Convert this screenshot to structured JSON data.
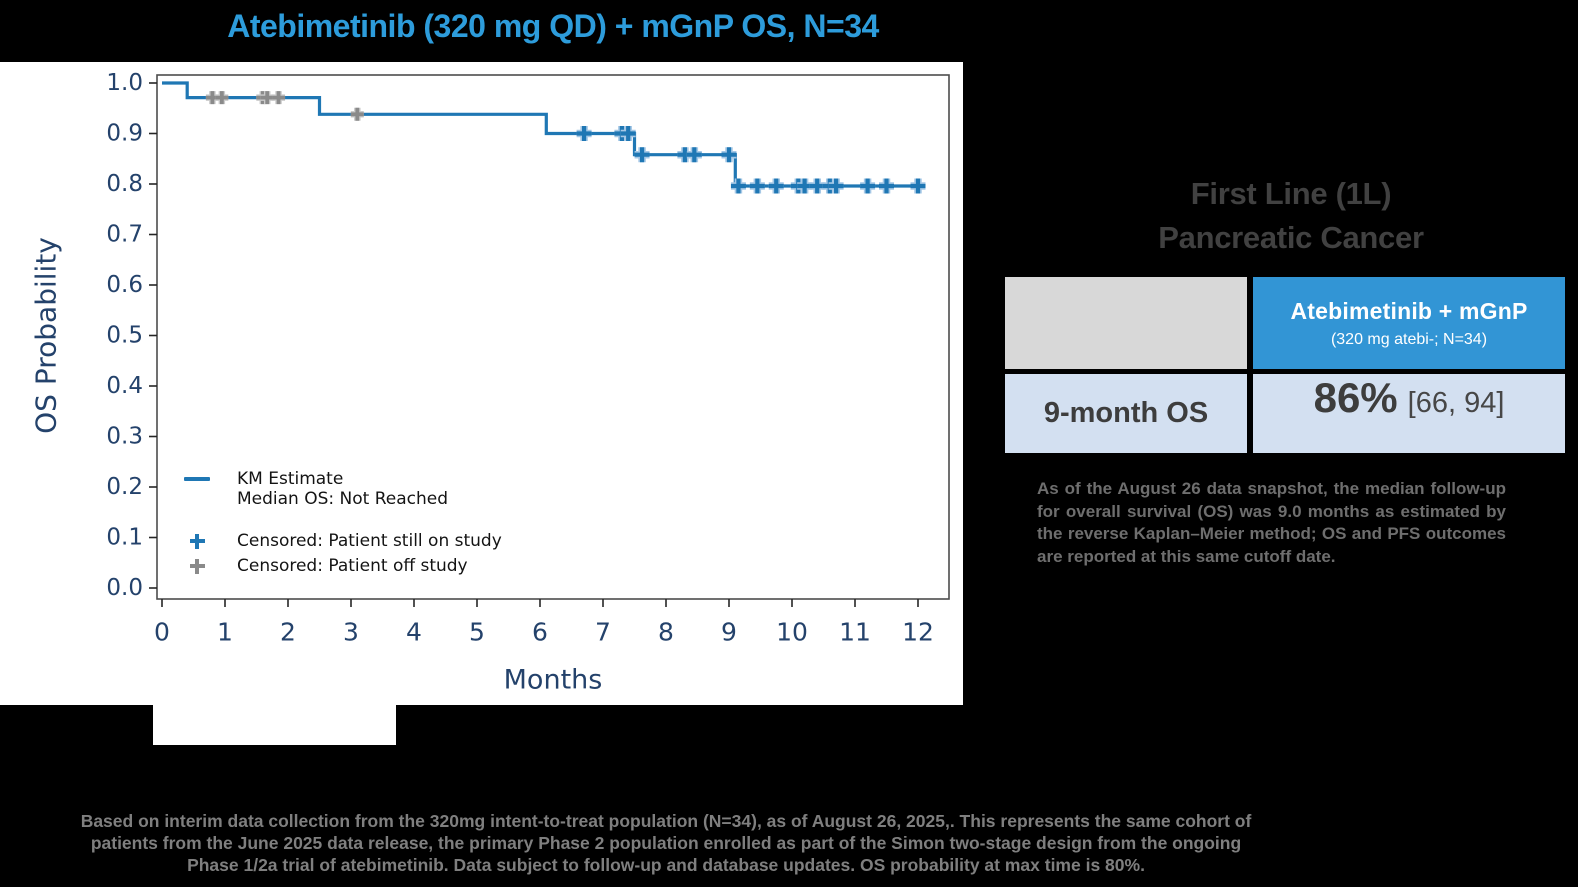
{
  "page": {
    "background": "#000000",
    "panel_background": "#ffffff"
  },
  "colors": {
    "title_blue": "#2D9CDB",
    "km_line_blue": "#1F77B4",
    "censor_on_study_blue": "#1F77B4",
    "censor_off_study_gray": "#8A8A8A",
    "axis_navy": "#24426B",
    "table_header_blue": "#3295D5",
    "table_row_light_blue": "#D3E0F1",
    "table_corner_gray": "#D8D8D8",
    "heading_gray": "#414141",
    "note_gray": "#6E6E6E",
    "footer_gray": "#7F7F7F"
  },
  "chart_data": {
    "type": "line",
    "subtype": "kaplan-meier-step",
    "title": "Atebimetinib (320 mg QD) + mGnP OS, N=34",
    "xlabel": "Months",
    "ylabel": "OS Probability",
    "xlim": [
      0,
      12.5
    ],
    "ylim": [
      0,
      1.0
    ],
    "grid": false,
    "x_ticks": [
      "0",
      "1",
      "2",
      "3",
      "4",
      "5",
      "6",
      "7",
      "8",
      "9",
      "10",
      "11",
      "12"
    ],
    "y_ticks": [
      "0.0",
      "0.1",
      "0.2",
      "0.3",
      "0.4",
      "0.5",
      "0.6",
      "0.7",
      "0.8",
      "0.9",
      "1.0"
    ],
    "km_steps": [
      {
        "t": 0.0,
        "p": 1.0
      },
      {
        "t": 0.4,
        "p": 0.971
      },
      {
        "t": 2.5,
        "p": 0.938
      },
      {
        "t": 6.1,
        "p": 0.9
      },
      {
        "t": 7.5,
        "p": 0.858
      },
      {
        "t": 9.1,
        "p": 0.796
      }
    ],
    "end_time": 12.0,
    "censored_patient_off_study": [
      [
        0.8,
        0.971
      ],
      [
        0.95,
        0.971
      ],
      [
        1.6,
        0.971
      ],
      [
        1.67,
        0.971
      ],
      [
        1.85,
        0.971
      ],
      [
        3.1,
        0.938
      ]
    ],
    "censored_patient_still_on_study": [
      [
        6.7,
        0.9
      ],
      [
        7.3,
        0.9
      ],
      [
        7.4,
        0.9
      ],
      [
        7.62,
        0.858
      ],
      [
        8.3,
        0.858
      ],
      [
        8.45,
        0.858
      ],
      [
        9.0,
        0.858
      ],
      [
        9.15,
        0.796
      ],
      [
        9.45,
        0.796
      ],
      [
        9.75,
        0.796
      ],
      [
        10.1,
        0.796
      ],
      [
        10.2,
        0.796
      ],
      [
        10.4,
        0.796
      ],
      [
        10.6,
        0.796
      ],
      [
        10.7,
        0.796
      ],
      [
        11.2,
        0.796
      ],
      [
        11.5,
        0.796
      ],
      [
        12.0,
        0.796
      ]
    ],
    "median_os": "Not Reached",
    "os_probability_at_max_time": "80%"
  },
  "legend": {
    "km_label": "KM Estimate",
    "km_sub": "Median OS: Not Reached",
    "censored_on_label": "Censored: Patient still on study",
    "censored_off_label": "Censored: Patient off study"
  },
  "right_panel": {
    "heading_line1": "First Line (1L)",
    "heading_line2": "Pancreatic Cancer",
    "table": {
      "arm_name": "Atebimetinib + mGnP",
      "arm_sub": "(320 mg atebi-; N=34)",
      "row_label": "9-month OS",
      "value": "86%",
      "ci": "[66, 94]"
    },
    "note": "As of the August 26  data snapshot, the median follow-up for overall survival (OS) was 9.0 months as estimated by the reverse Kaplan–Meier method; OS and PFS outcomes are reported at this same cutoff date."
  },
  "footer": {
    "lines": [
      "Based on interim data collection from the 320mg intent-to-treat population (N=34), as of August 26, 2025,. This represents the same cohort of",
      "patients from the June 2025 data release, the primary Phase 2 population enrolled as part of the Simon two-stage design from the ongoing",
      "Phase 1/2a trial of atebimetinib. Data subject to follow-up and database updates. OS probability at max time is 80%."
    ]
  }
}
